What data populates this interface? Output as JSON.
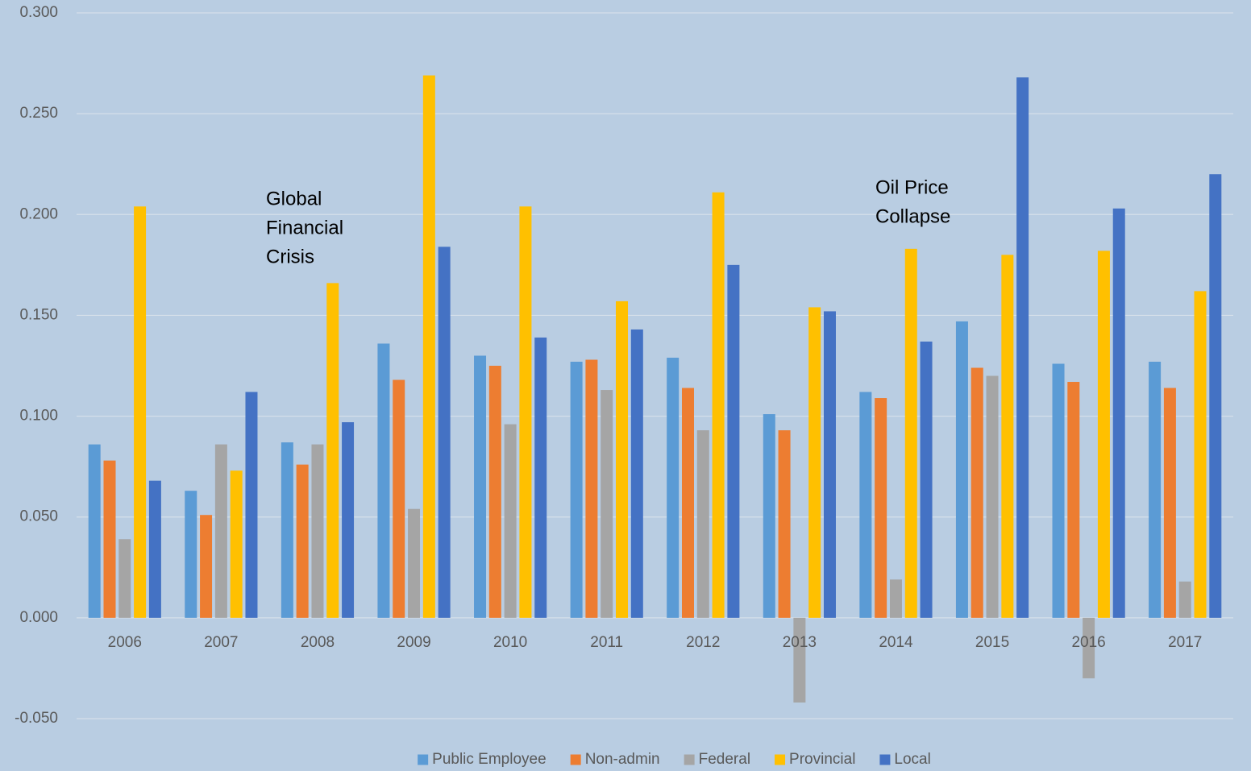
{
  "chart_data": {
    "type": "bar",
    "categories": [
      "2006",
      "2007",
      "2008",
      "2009",
      "2010",
      "2011",
      "2012",
      "2013",
      "2014",
      "2015",
      "2016",
      "2017"
    ],
    "series": [
      {
        "name": "Public Employee",
        "color": "#5b9bd5",
        "values": [
          0.086,
          0.063,
          0.087,
          0.136,
          0.13,
          0.127,
          0.129,
          0.101,
          0.112,
          0.147,
          0.126,
          0.127
        ]
      },
      {
        "name": "Non-admin",
        "color": "#ed7d31",
        "values": [
          0.078,
          0.051,
          0.076,
          0.118,
          0.125,
          0.128,
          0.114,
          0.093,
          0.109,
          0.124,
          0.117,
          0.114
        ]
      },
      {
        "name": "Federal",
        "color": "#a5a5a5",
        "values": [
          0.039,
          0.086,
          0.086,
          0.054,
          0.096,
          0.113,
          0.093,
          -0.042,
          0.019,
          0.12,
          -0.03,
          0.018
        ]
      },
      {
        "name": "Provincial",
        "color": "#ffc000",
        "values": [
          0.204,
          0.073,
          0.166,
          0.269,
          0.204,
          0.157,
          0.211,
          0.154,
          0.183,
          0.18,
          0.182,
          0.162
        ]
      },
      {
        "name": "Local",
        "color": "#4472c4",
        "values": [
          0.068,
          0.112,
          0.097,
          0.184,
          0.139,
          0.143,
          0.175,
          0.152,
          0.137,
          0.268,
          0.203,
          0.22
        ]
      }
    ],
    "ylim": [
      -0.05,
      0.3
    ],
    "yticks": [
      {
        "value": -0.05,
        "label": "-0.050"
      },
      {
        "value": 0,
        "label": "0.000"
      },
      {
        "value": 0.05,
        "label": "0.050"
      },
      {
        "value": 0.1,
        "label": "0.100"
      },
      {
        "value": 0.15,
        "label": "0.150"
      },
      {
        "value": 0.2,
        "label": "0.200"
      },
      {
        "value": 0.25,
        "label": "0.250"
      },
      {
        "value": 0.3,
        "label": "0.300"
      }
    ],
    "grid": true,
    "legend": "bottom",
    "annotations": [
      {
        "lines": [
          "Global",
          "Financial",
          "Crisis"
        ]
      },
      {
        "lines": [
          "Oil Price",
          "Collapse"
        ]
      }
    ]
  }
}
